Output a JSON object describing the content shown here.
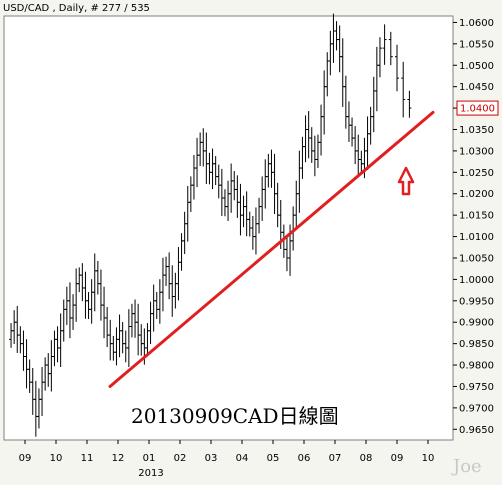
{
  "header": {
    "title": "USD/CAD , Daily, # 277 / 535"
  },
  "annotation": "20130909CAD日線圖",
  "watermark": "Joe",
  "last_price": {
    "label": "1.0400",
    "value": 1.04
  },
  "colors": {
    "background": "#f5f5f0",
    "plot": "#ffffff",
    "candle": "#000000",
    "trendline": "#e02020",
    "arrow": "#e02020",
    "last_price": "#cc0000"
  },
  "icons": {
    "arrow": "up-arrow-outline-icon"
  },
  "chart_data": {
    "type": "candlestick",
    "title": "USD/CAD , Daily, # 277 / 535",
    "instrument": "USD/CAD",
    "timeframe": "Daily",
    "ylim": [
      0.9625,
      1.0615
    ],
    "y_ticks": [
      "1.0600",
      "1.0550",
      "1.0500",
      "1.0450",
      "1.0400",
      "1.0350",
      "1.0300",
      "1.0250",
      "1.0200",
      "1.0150",
      "1.0100",
      "1.0050",
      "1.0000",
      "0.9950",
      "0.9900",
      "0.9850",
      "0.9800",
      "0.9750",
      "0.9700",
      "0.9650"
    ],
    "x_ticks": [
      "09",
      "10",
      "11",
      "12",
      "01",
      "02",
      "03",
      "04",
      "05",
      "06",
      "07",
      "08",
      "09",
      "10"
    ],
    "x_year_label": "2013",
    "series_close": [
      [
        "2012-09",
        0.988
      ],
      [
        "2012-09",
        0.99
      ],
      [
        "2012-09",
        0.987
      ],
      [
        "2012-09",
        0.985
      ],
      [
        "2012-09",
        0.982
      ],
      [
        "2012-09",
        0.979
      ],
      [
        "2012-09",
        0.976
      ],
      [
        "2012-09",
        0.972
      ],
      [
        "2012-09",
        0.968
      ],
      [
        "2012-09",
        0.972
      ],
      [
        "2012-10",
        0.976
      ],
      [
        "2012-10",
        0.98
      ],
      [
        "2012-10",
        0.978
      ],
      [
        "2012-10",
        0.982
      ],
      [
        "2012-10",
        0.986
      ],
      [
        "2012-10",
        0.984
      ],
      [
        "2012-10",
        0.988
      ],
      [
        "2012-10",
        0.993
      ],
      [
        "2012-10",
        0.995
      ],
      [
        "2012-10",
        0.991
      ],
      [
        "2012-11",
        0.994
      ],
      [
        "2012-11",
        0.999
      ],
      [
        "2012-11",
        1.001
      ],
      [
        "2012-11",
        0.998
      ],
      [
        "2012-11",
        0.995
      ],
      [
        "2012-11",
        0.993
      ],
      [
        "2012-11",
        0.997
      ],
      [
        "2012-11",
        1.002
      ],
      [
        "2012-11",
        0.999
      ],
      [
        "2012-11",
        0.994
      ],
      [
        "2012-12",
        0.991
      ],
      [
        "2012-12",
        0.987
      ],
      [
        "2012-12",
        0.985
      ],
      [
        "2012-12",
        0.983
      ],
      [
        "2012-12",
        0.986
      ],
      [
        "2012-12",
        0.988
      ],
      [
        "2012-12",
        0.985
      ],
      [
        "2012-12",
        0.984
      ],
      [
        "2012-12",
        0.989
      ],
      [
        "2012-12",
        0.992
      ],
      [
        "2013-01",
        0.99
      ],
      [
        "2013-01",
        0.987
      ],
      [
        "2013-01",
        0.985
      ],
      [
        "2013-01",
        0.984
      ],
      [
        "2013-01",
        0.988
      ],
      [
        "2013-01",
        0.992
      ],
      [
        "2013-01",
        0.995
      ],
      [
        "2013-01",
        0.993
      ],
      [
        "2013-01",
        0.997
      ],
      [
        "2013-01",
        1.001
      ],
      [
        "2013-02",
        1.003
      ],
      [
        "2013-02",
        0.999
      ],
      [
        "2013-02",
        0.996
      ],
      [
        "2013-02",
        0.999
      ],
      [
        "2013-02",
        1.004
      ],
      [
        "2013-02",
        1.009
      ],
      [
        "2013-02",
        1.013
      ],
      [
        "2013-02",
        1.018
      ],
      [
        "2013-02",
        1.022
      ],
      [
        "2013-02",
        1.026
      ],
      [
        "2013-03",
        1.029
      ],
      [
        "2013-03",
        1.032
      ],
      [
        "2013-03",
        1.03
      ],
      [
        "2013-03",
        1.027
      ],
      [
        "2013-03",
        1.025
      ],
      [
        "2013-03",
        1.027
      ],
      [
        "2013-03",
        1.024
      ],
      [
        "2013-03",
        1.022
      ],
      [
        "2013-03",
        1.019
      ],
      [
        "2013-03",
        1.017
      ],
      [
        "2013-04",
        1.02
      ],
      [
        "2013-04",
        1.023
      ],
      [
        "2013-04",
        1.021
      ],
      [
        "2013-04",
        1.018
      ],
      [
        "2013-04",
        1.015
      ],
      [
        "2013-04",
        1.017
      ],
      [
        "2013-04",
        1.014
      ],
      [
        "2013-04",
        1.012
      ],
      [
        "2013-04",
        1.01
      ],
      [
        "2013-04",
        1.013
      ],
      [
        "2013-05",
        1.017
      ],
      [
        "2013-05",
        1.021
      ],
      [
        "2013-05",
        1.024
      ],
      [
        "2013-05",
        1.027
      ],
      [
        "2013-05",
        1.025
      ],
      [
        "2013-05",
        1.02
      ],
      [
        "2013-05",
        1.015
      ],
      [
        "2013-05",
        1.011
      ],
      [
        "2013-05",
        1.007
      ],
      [
        "2013-05",
        1.005
      ],
      [
        "2013-06",
        1.009
      ],
      [
        "2013-06",
        1.015
      ],
      [
        "2013-06",
        1.02
      ],
      [
        "2013-06",
        1.026
      ],
      [
        "2013-06",
        1.031
      ],
      [
        "2013-06",
        1.035
      ],
      [
        "2013-06",
        1.033
      ],
      [
        "2013-06",
        1.03
      ],
      [
        "2013-06",
        1.028
      ],
      [
        "2013-06",
        1.032
      ],
      [
        "2013-07",
        1.038
      ],
      [
        "2013-07",
        1.045
      ],
      [
        "2013-07",
        1.051
      ],
      [
        "2013-07",
        1.055
      ],
      [
        "2013-07",
        1.058
      ],
      [
        "2013-07",
        1.056
      ],
      [
        "2013-07",
        1.052
      ],
      [
        "2013-07",
        1.045
      ],
      [
        "2013-07",
        1.038
      ],
      [
        "2013-07",
        1.036
      ],
      [
        "2013-08",
        1.033
      ],
      [
        "2013-08",
        1.03
      ],
      [
        "2013-08",
        1.028
      ],
      [
        "2013-08",
        1.027
      ],
      [
        "2013-08",
        1.03
      ],
      [
        "2013-08",
        1.034
      ],
      [
        "2013-08",
        1.038
      ],
      [
        "2013-08",
        1.044
      ],
      [
        "2013-08",
        1.05
      ],
      [
        "2013-08",
        1.054
      ],
      [
        "2013-09",
        1.056
      ],
      [
        "2013-09",
        1.052
      ],
      [
        "2013-09",
        1.047
      ],
      [
        "2013-09",
        1.042
      ],
      [
        "2013-09",
        1.04
      ]
    ],
    "trendline": {
      "start": [
        "2012-12",
        0.975
      ],
      "end": [
        "2013-10",
        1.039
      ],
      "color": "#e02020"
    },
    "last_value": 1.04,
    "grid": false,
    "legend": "none"
  }
}
